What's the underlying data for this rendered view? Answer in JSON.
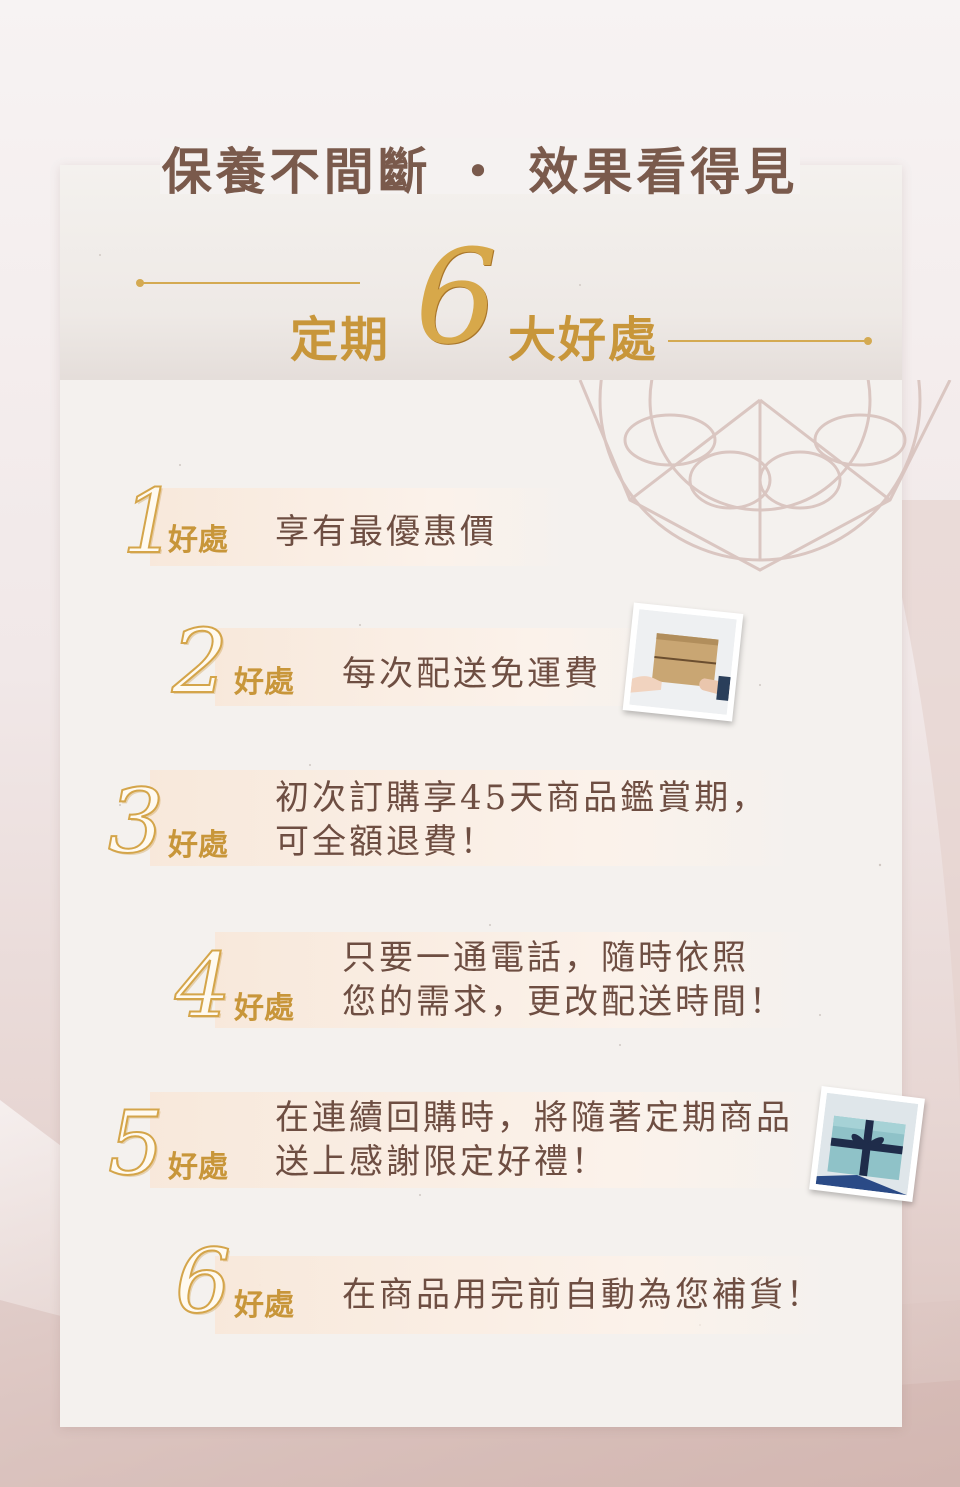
{
  "header": {
    "title": "保養不間斷 ・ 效果看得見",
    "subtitle_left": "定期",
    "subtitle_number": "6",
    "subtitle_right": "大好處"
  },
  "benefits": [
    {
      "number": "1",
      "label": "好處",
      "lines": [
        "享有最優惠價"
      ]
    },
    {
      "number": "2",
      "label": "好處",
      "lines": [
        "每次配送免運費"
      ]
    },
    {
      "number": "3",
      "label": "好處",
      "lines": [
        "初次訂購享45天商品鑑賞期，",
        "可全額退費！"
      ]
    },
    {
      "number": "4",
      "label": "好處",
      "lines": [
        "只要一通電話，隨時依照",
        "您的需求，更改配送時間！"
      ]
    },
    {
      "number": "5",
      "label": "好處",
      "lines": [
        "在連續回購時，將隨著定期商品",
        "送上感謝限定好禮！"
      ]
    },
    {
      "number": "6",
      "label": "好處",
      "lines": [
        "在商品用完前自動為您補貨！"
      ]
    }
  ],
  "images": {
    "delivery": "box-handover-photo",
    "gift": "gift-box-photo"
  },
  "colors": {
    "title": "#7a5a4c",
    "gold": "#d4aa52",
    "body_text": "#6e4e42"
  }
}
